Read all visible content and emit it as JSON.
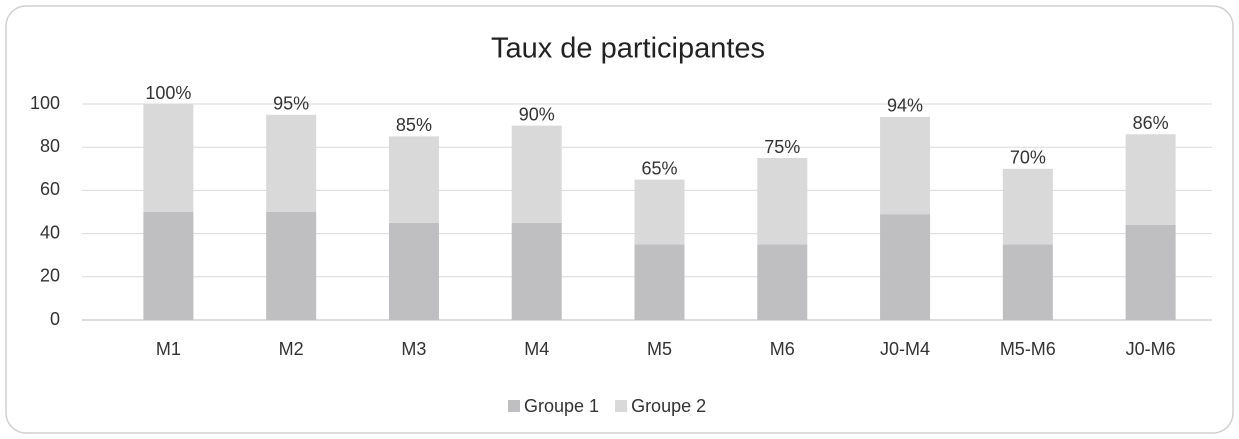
{
  "chart_data": {
    "type": "stacked-bar",
    "title": "Taux de participantes",
    "categories": [
      "M1",
      "M2",
      "M3",
      "M4",
      "M5",
      "M6",
      "J0-M4",
      "M5-M6",
      "J0-M6"
    ],
    "series": [
      {
        "name": "Groupe 1",
        "color": "#bfbfc1",
        "values": [
          50,
          50,
          45,
          45,
          35,
          35,
          49,
          35,
          44
        ]
      },
      {
        "name": "Groupe 2",
        "color": "#d9d9d9",
        "values": [
          50,
          45,
          40,
          45,
          30,
          40,
          45,
          35,
          42
        ]
      }
    ],
    "total_labels": [
      "100%",
      "95%",
      "85%",
      "90%",
      "65%",
      "75%",
      "94%",
      "70%",
      "86%"
    ],
    "ylim": [
      0,
      100
    ],
    "yticks": [
      0,
      20,
      40,
      60,
      80,
      100
    ],
    "grid": true,
    "legend": "bottom"
  }
}
